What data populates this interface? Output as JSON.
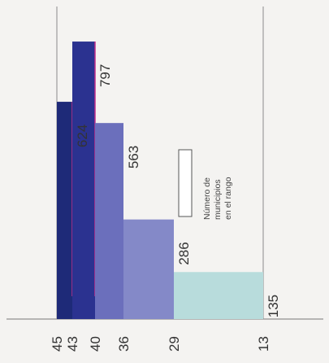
{
  "chart_data": {
    "type": "bar",
    "orientation": "rotated-waterfall",
    "title": "",
    "xlabel": "",
    "ylabel": "",
    "axis_ticks": [
      "45",
      "43",
      "40",
      "36",
      "29",
      "13"
    ],
    "axis_values": [
      45,
      43,
      40,
      36,
      29,
      13
    ],
    "axis_range": [
      45,
      10
    ],
    "bars": [
      {
        "from": 45,
        "to": 43,
        "value": 624,
        "label": "624",
        "color": "#1e2a78"
      },
      {
        "from": 43,
        "to": 40,
        "value": 797,
        "label": "797",
        "color": "#2b3290"
      },
      {
        "from": 40,
        "to": 36,
        "value": 563,
        "label": "563",
        "color": "#6b6fbc"
      },
      {
        "from": 36,
        "to": 29,
        "value": 286,
        "label": "286",
        "color": "#8489c8"
      },
      {
        "from": 29,
        "to": 13,
        "value": 135,
        "label": "135",
        "color": "#b8dcdc"
      }
    ],
    "value_range": [
      0,
      900
    ],
    "legend": {
      "text_lines": [
        "Número de",
        "municipios",
        "en el rango"
      ],
      "placement": "center-right"
    },
    "grid": false
  }
}
